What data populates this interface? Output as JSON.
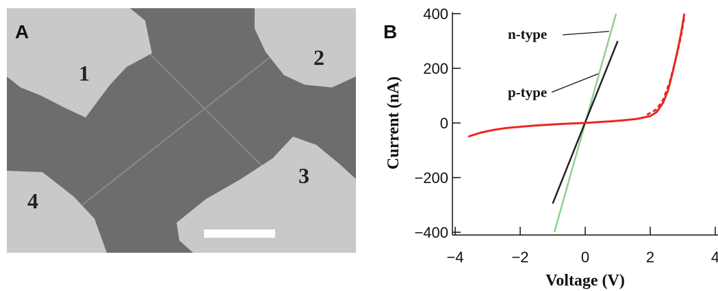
{
  "panel_labels": [
    "A",
    "B"
  ],
  "image": {
    "labels": [
      "1",
      "2",
      "3",
      "4"
    ]
  },
  "chart_data": {
    "type": "line",
    "xlabel": "Voltage (V)",
    "ylabel": "Current (nA)",
    "xlim": [
      -4,
      4
    ],
    "ylim": [
      -400,
      400
    ],
    "xticks": [
      {
        "value": -4,
        "label": "−4"
      },
      {
        "value": -2,
        "label": "−2"
      },
      0,
      2,
      4
    ],
    "yticks": [
      {
        "value": -400,
        "label": "−400"
      },
      {
        "value": -200,
        "label": "−200"
      },
      0,
      200,
      400
    ],
    "series": [
      {
        "name": "n-type",
        "color": "#8fd08f",
        "x": [
          -0.95,
          0.95
        ],
        "values": [
          -400,
          400
        ]
      },
      {
        "name": "p-type",
        "color": "#222222",
        "x": [
          -1,
          1
        ],
        "values": [
          -295,
          300
        ]
      },
      {
        "color": "#e8281e",
        "x": [
          -3.6,
          -3.2,
          -2.8,
          -2.4,
          -2,
          -1.6,
          -1.2,
          -0.8,
          -0.4,
          0,
          0.4,
          0.8,
          1.2,
          1.6,
          2,
          2.2,
          2.4,
          2.55,
          2.7,
          2.85,
          2.95,
          3.05
        ],
        "values": [
          -50,
          -35,
          -25,
          -18,
          -14,
          -10,
          -7,
          -4,
          -2,
          0,
          3,
          6,
          10,
          15,
          25,
          40,
          75,
          120,
          190,
          270,
          330,
          400
        ]
      },
      {
        "color": "#e8281e",
        "dash": true,
        "x": [
          1.9,
          2.2,
          2.4,
          2.6,
          2.8,
          2.95,
          3.05
        ],
        "values": [
          30,
          50,
          85,
          150,
          240,
          320,
          390
        ]
      }
    ],
    "annotations": [
      {
        "text": "n-type",
        "series": 0
      },
      {
        "text": "p-type",
        "series": 1
      }
    ]
  }
}
